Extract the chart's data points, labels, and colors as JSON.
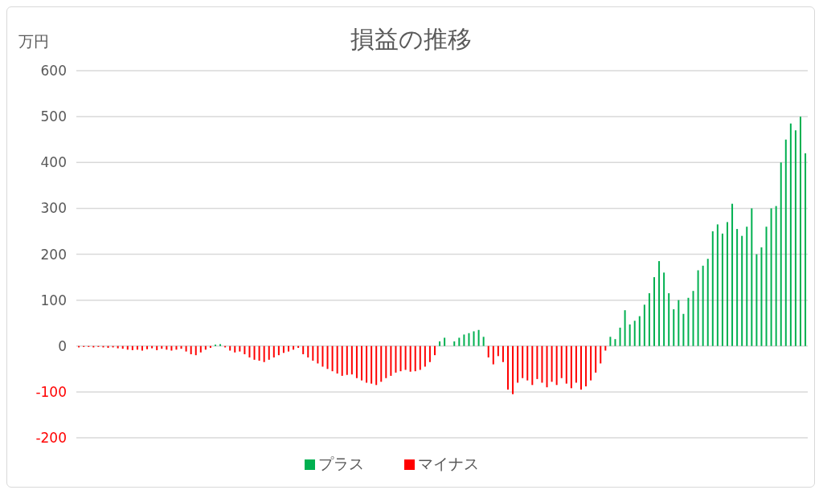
{
  "chart_data": {
    "type": "bar",
    "title": "損益の推移",
    "ylabel": "万円",
    "categories": [
      null,
      null,
      null,
      null,
      null,
      null,
      null,
      null,
      null,
      null,
      null,
      null,
      null,
      null,
      null,
      null,
      null,
      null,
      null,
      null,
      null,
      null,
      null,
      null,
      null,
      null,
      null,
      null,
      null,
      null,
      null,
      null,
      null,
      null,
      null,
      null,
      null,
      null,
      null,
      null,
      null,
      null,
      null,
      null,
      null,
      null,
      null,
      null,
      null,
      null,
      null,
      null,
      null,
      null,
      null,
      null,
      null,
      null,
      null,
      null,
      null,
      null,
      null,
      null,
      null,
      null,
      null,
      null,
      null,
      null,
      null,
      null,
      null,
      null,
      null,
      null,
      null,
      null,
      null,
      null,
      null,
      null,
      null,
      null,
      null,
      null,
      null,
      null,
      null,
      null,
      null,
      null,
      null,
      null,
      null,
      null,
      null,
      null,
      null,
      null,
      null,
      null,
      null,
      null,
      null,
      null,
      null,
      null,
      null,
      null,
      null,
      null,
      null,
      null,
      null,
      null,
      null,
      null,
      null,
      null,
      null,
      null,
      null,
      null,
      null,
      null,
      null,
      null,
      null,
      null,
      null,
      null,
      null,
      null,
      null,
      null,
      null,
      null,
      null,
      null,
      null,
      null,
      null,
      null,
      null,
      null,
      null,
      null,
      null,
      null
    ],
    "stacked": true,
    "series": [
      {
        "name": "プラス",
        "color": "#00b050",
        "values": [
          null,
          null,
          null,
          null,
          null,
          null,
          null,
          null,
          null,
          null,
          null,
          null,
          null,
          null,
          null,
          null,
          null,
          null,
          null,
          null,
          null,
          null,
          null,
          null,
          null,
          null,
          null,
          null,
          3,
          4,
          null,
          null,
          null,
          null,
          null,
          null,
          null,
          null,
          null,
          null,
          null,
          null,
          null,
          null,
          null,
          null,
          null,
          null,
          null,
          null,
          null,
          null,
          null,
          null,
          null,
          null,
          null,
          null,
          null,
          null,
          null,
          null,
          null,
          null,
          null,
          null,
          null,
          null,
          null,
          null,
          null,
          null,
          null,
          null,
          10,
          18,
          null,
          10,
          18,
          25,
          28,
          32,
          35,
          20,
          null,
          null,
          null,
          null,
          null,
          null,
          null,
          null,
          null,
          null,
          null,
          null,
          null,
          null,
          null,
          null,
          null,
          null,
          null,
          null,
          null,
          null,
          null,
          null,
          null,
          20,
          15,
          40,
          78,
          47,
          55,
          65,
          90,
          115,
          150,
          185,
          160,
          115,
          80,
          100,
          70,
          105,
          120,
          165,
          175,
          190,
          250,
          265,
          245,
          270,
          310,
          255,
          240,
          260,
          300,
          200,
          215,
          260,
          300,
          305,
          400,
          450,
          485,
          470,
          500,
          420
        ]
      },
      {
        "name": "マイナス",
        "color": "#ff0000",
        "values": [
          -3,
          -2,
          -2,
          -3,
          -2,
          -3,
          -4,
          -3,
          -5,
          -6,
          -8,
          -9,
          -8,
          -10,
          -7,
          -5,
          -9,
          -6,
          -8,
          -10,
          -8,
          -6,
          -12,
          -18,
          -20,
          -14,
          -8,
          -4,
          null,
          null,
          -3,
          -10,
          -14,
          -12,
          -18,
          -25,
          -30,
          -32,
          -35,
          -30,
          -25,
          -20,
          -15,
          -12,
          -8,
          -4,
          -18,
          -25,
          -32,
          -38,
          -45,
          -50,
          -55,
          -60,
          -65,
          -63,
          -62,
          -70,
          -75,
          -80,
          -82,
          -85,
          -78,
          -70,
          -65,
          -58,
          -55,
          -52,
          -56,
          -55,
          -52,
          -45,
          -35,
          -20,
          null,
          null,
          null,
          null,
          null,
          null,
          null,
          null,
          null,
          null,
          -25,
          -40,
          -22,
          -35,
          -95,
          -105,
          -80,
          -70,
          -75,
          -85,
          -72,
          -80,
          -90,
          -78,
          -85,
          -70,
          -82,
          -92,
          -80,
          -95,
          -88,
          -75,
          -58,
          -38,
          -10,
          null,
          null,
          null,
          null,
          null,
          null,
          null,
          null,
          null,
          null,
          null,
          null,
          null,
          null,
          null,
          null,
          null,
          null,
          null,
          null,
          null,
          null,
          null,
          null,
          null,
          null,
          null,
          null,
          null,
          null,
          null,
          null,
          null,
          null,
          null,
          null,
          null,
          null,
          null,
          null,
          null
        ]
      }
    ],
    "ylim": [
      -200,
      600
    ],
    "yticks": [
      -200,
      -100,
      0,
      100,
      200,
      300,
      400,
      500,
      600
    ],
    "grid": "y",
    "legend": "bottom"
  }
}
